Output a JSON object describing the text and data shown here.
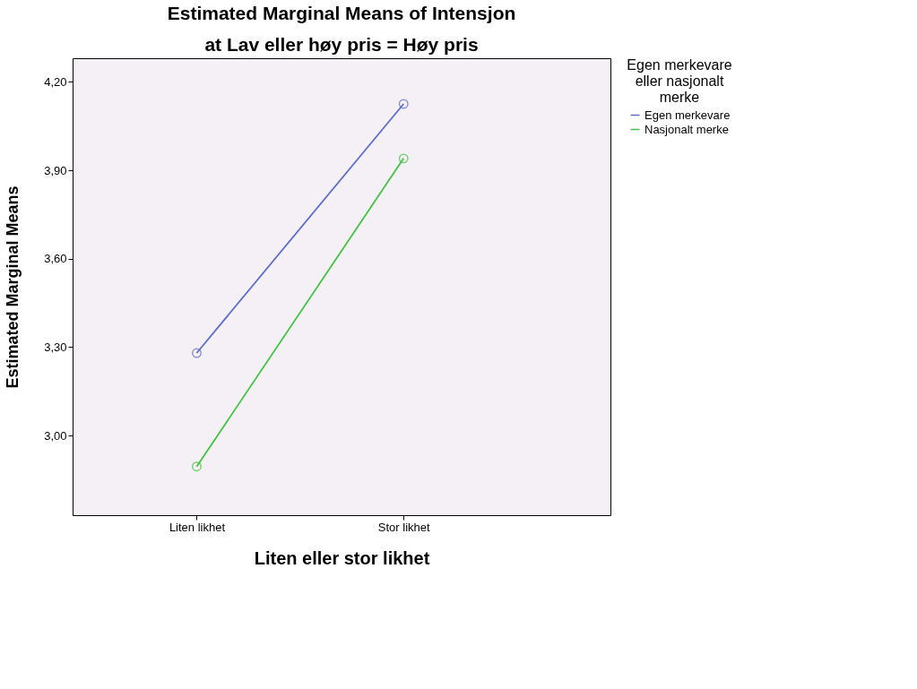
{
  "chart_data": {
    "type": "line",
    "title": "Estimated Marginal Means of Intensjon",
    "subtitle": "at Lav eller høy pris = Høy pris",
    "xlabel": "Liten eller stor likhet",
    "ylabel": "Estimated Marginal Means",
    "legend_title": "Egen merkevare eller nasjonalt merke",
    "categories": [
      "Liten likhet",
      "Stor likhet"
    ],
    "series": [
      {
        "name": "Egen merkevare",
        "color": "#5a6ecf",
        "values": [
          3.28,
          4.125
        ]
      },
      {
        "name": "Nasjonalt merke",
        "color": "#3ec43e",
        "values": [
          2.895,
          3.94
        ]
      }
    ],
    "ylim": [
      2.73,
      4.28
    ],
    "yticks": [
      {
        "value": 3.0,
        "label": "3,00"
      },
      {
        "value": 3.3,
        "label": "3,30"
      },
      {
        "value": 3.6,
        "label": "3,60"
      },
      {
        "value": 3.9,
        "label": "3,90"
      },
      {
        "value": 4.2,
        "label": "4,20"
      }
    ],
    "grid": false,
    "legend": "top right",
    "marker": "circle",
    "line_style": "solid"
  }
}
